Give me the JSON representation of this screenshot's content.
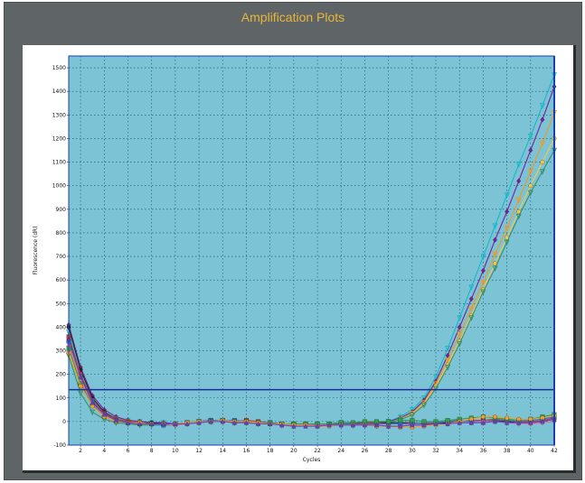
{
  "window": {
    "title": "Amplification Plots"
  },
  "colors": {
    "plot_bg": "#7cc3d6",
    "grid": "#1f4f5f",
    "threshold": "#1c2a9c",
    "frame": "#1a3fae"
  },
  "chart_data": {
    "type": "line",
    "title": "Amplification Plots",
    "xlabel": "Cycles",
    "ylabel": "Fluorescence (dR)",
    "xlim": [
      1,
      42
    ],
    "ylim": [
      -100,
      1550
    ],
    "xticks": [
      2,
      4,
      6,
      8,
      10,
      12,
      14,
      16,
      18,
      20,
      22,
      24,
      26,
      28,
      30,
      32,
      34,
      36,
      38,
      40,
      42
    ],
    "yticks": [
      -100,
      0,
      100,
      200,
      300,
      400,
      500,
      600,
      700,
      800,
      900,
      1000,
      1100,
      1200,
      1300,
      1400,
      1500
    ],
    "grid": true,
    "threshold": 135,
    "x": [
      1,
      2,
      3,
      4,
      5,
      6,
      7,
      8,
      9,
      10,
      11,
      12,
      13,
      14,
      15,
      16,
      17,
      18,
      19,
      20,
      21,
      22,
      23,
      24,
      25,
      26,
      27,
      28,
      29,
      30,
      31,
      32,
      33,
      34,
      35,
      36,
      37,
      38,
      39,
      40,
      41,
      42
    ],
    "series": [
      {
        "color": "#17b8c8",
        "marker": "triangle-down",
        "values": [
          380,
          200,
          100,
          40,
          15,
          5,
          0,
          -5,
          -5,
          -10,
          -5,
          0,
          5,
          5,
          0,
          0,
          -5,
          -5,
          -10,
          -10,
          -10,
          -10,
          -10,
          -5,
          -10,
          -5,
          -5,
          0,
          20,
          50,
          100,
          190,
          310,
          440,
          570,
          700,
          830,
          960,
          1090,
          1210,
          1340,
          1470
        ]
      },
      {
        "color": "#7a1f9e",
        "marker": "diamond",
        "values": [
          410,
          230,
          110,
          50,
          20,
          5,
          0,
          -5,
          -5,
          -10,
          -5,
          0,
          5,
          5,
          0,
          0,
          -5,
          -5,
          -10,
          -10,
          -10,
          -10,
          -10,
          -5,
          -10,
          -5,
          -5,
          0,
          15,
          40,
          90,
          170,
          280,
          400,
          520,
          640,
          770,
          890,
          1020,
          1150,
          1280,
          1420
        ]
      },
      {
        "color": "#f09a1e",
        "marker": "triangle-down",
        "values": [
          330,
          180,
          80,
          30,
          10,
          0,
          -5,
          -10,
          -10,
          -15,
          -10,
          -5,
          0,
          0,
          -5,
          -5,
          -10,
          -10,
          -15,
          -15,
          -15,
          -15,
          -15,
          -10,
          -15,
          -10,
          -10,
          -5,
          10,
          35,
          80,
          160,
          260,
          370,
          480,
          590,
          710,
          820,
          940,
          1060,
          1180,
          1310
        ]
      },
      {
        "color": "#f5c84a",
        "marker": "circle",
        "values": [
          300,
          160,
          70,
          25,
          5,
          -5,
          -10,
          -10,
          -15,
          -15,
          -10,
          -5,
          0,
          0,
          -5,
          -5,
          -10,
          -10,
          -15,
          -15,
          -15,
          -15,
          -15,
          -10,
          -15,
          -10,
          -10,
          -5,
          10,
          30,
          75,
          150,
          240,
          340,
          450,
          560,
          670,
          780,
          890,
          1000,
          1100,
          1200
        ]
      },
      {
        "color": "#3a8f6a",
        "marker": "triangle-down",
        "values": [
          280,
          120,
          40,
          10,
          -5,
          -10,
          -15,
          -15,
          -15,
          -15,
          -10,
          -5,
          0,
          0,
          -5,
          -5,
          -10,
          -10,
          -15,
          -15,
          -15,
          -15,
          -15,
          -10,
          -15,
          -10,
          -10,
          -5,
          8,
          28,
          70,
          140,
          230,
          330,
          440,
          550,
          650,
          760,
          870,
          970,
          1060,
          1150
        ]
      },
      {
        "color": "#222222",
        "marker": "circle",
        "values": [
          400,
          220,
          100,
          40,
          10,
          0,
          -5,
          -5,
          -10,
          -10,
          -5,
          0,
          5,
          5,
          0,
          0,
          -5,
          -5,
          -10,
          -10,
          -10,
          -10,
          -10,
          -5,
          -5,
          -5,
          -5,
          -5,
          -5,
          -5,
          -10,
          -10,
          -5,
          -5,
          -5,
          0,
          5,
          0,
          -5,
          -5,
          0,
          10
        ]
      },
      {
        "color": "#c83a2a",
        "marker": "square",
        "values": [
          360,
          200,
          90,
          35,
          10,
          0,
          -5,
          -10,
          -10,
          -10,
          -5,
          0,
          5,
          5,
          0,
          5,
          0,
          -5,
          -10,
          -10,
          -10,
          -15,
          -10,
          -5,
          -10,
          -5,
          -5,
          -10,
          -10,
          -5,
          -10,
          -5,
          0,
          0,
          5,
          5,
          10,
          5,
          0,
          0,
          5,
          15
        ]
      },
      {
        "color": "#2f6fd0",
        "marker": "square",
        "values": [
          340,
          190,
          85,
          30,
          5,
          -5,
          -10,
          -10,
          -15,
          -10,
          -5,
          0,
          5,
          5,
          5,
          0,
          -5,
          -10,
          -10,
          -10,
          -10,
          -10,
          -10,
          -10,
          -10,
          -10,
          -10,
          -10,
          -10,
          -10,
          -5,
          -5,
          0,
          5,
          0,
          0,
          5,
          5,
          0,
          5,
          10,
          20
        ]
      },
      {
        "color": "#e86fa8",
        "marker": "diamond",
        "values": [
          320,
          170,
          75,
          25,
          5,
          -5,
          -10,
          -10,
          -10,
          -15,
          -10,
          -5,
          0,
          0,
          0,
          -5,
          -5,
          -10,
          -15,
          -15,
          -15,
          -15,
          -15,
          -15,
          -15,
          -15,
          -20,
          -20,
          -20,
          -15,
          -15,
          -10,
          -10,
          -5,
          -5,
          0,
          0,
          -5,
          -10,
          -10,
          -5,
          0
        ]
      },
      {
        "color": "#2fa14a",
        "marker": "square",
        "values": [
          310,
          160,
          70,
          20,
          0,
          -5,
          -10,
          -10,
          -10,
          -10,
          -5,
          0,
          0,
          5,
          0,
          0,
          -5,
          -5,
          -10,
          -10,
          -10,
          -10,
          -10,
          -5,
          -5,
          0,
          0,
          0,
          5,
          5,
          0,
          0,
          5,
          10,
          15,
          20,
          15,
          10,
          5,
          10,
          20,
          30
        ]
      },
      {
        "color": "#f0a030",
        "marker": "circle",
        "values": [
          290,
          150,
          65,
          20,
          0,
          -5,
          -5,
          -10,
          -10,
          -10,
          -5,
          0,
          0,
          5,
          0,
          0,
          -5,
          -10,
          -10,
          -15,
          -15,
          -20,
          -20,
          -15,
          -15,
          -15,
          -20,
          -20,
          -25,
          -25,
          -20,
          -15,
          -10,
          0,
          10,
          20,
          20,
          15,
          10,
          10,
          15,
          25
        ]
      },
      {
        "color": "#6a3fc4",
        "marker": "triangle-up",
        "values": [
          350,
          190,
          80,
          30,
          5,
          -5,
          -10,
          -10,
          -10,
          -10,
          -10,
          -5,
          0,
          0,
          -5,
          -5,
          -10,
          -10,
          -15,
          -20,
          -20,
          -20,
          -15,
          -15,
          -15,
          -15,
          -15,
          -20,
          -20,
          -15,
          -15,
          -10,
          -10,
          -5,
          -5,
          -5,
          0,
          -5,
          -5,
          -5,
          0,
          10
        ]
      }
    ]
  }
}
